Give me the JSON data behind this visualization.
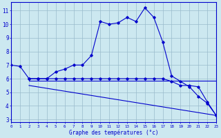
{
  "line1_x": [
    0,
    1,
    2,
    3,
    4,
    5,
    6,
    7,
    8,
    9,
    10,
    11,
    12,
    13,
    14,
    15,
    16,
    17,
    18,
    19,
    20,
    21,
    22,
    23
  ],
  "line1_y": [
    7.0,
    6.9,
    6.0,
    6.0,
    6.0,
    6.5,
    6.7,
    7.0,
    7.0,
    7.7,
    10.2,
    10.0,
    10.1,
    10.5,
    10.2,
    11.2,
    10.5,
    8.7,
    6.2,
    5.8,
    5.4,
    4.7,
    4.2,
    3.3
  ],
  "line2_x": [
    2,
    3,
    4,
    5,
    6,
    7,
    8,
    9,
    10,
    11,
    12,
    13,
    14,
    15,
    16,
    17,
    18,
    19,
    20,
    21,
    22,
    23
  ],
  "line2_y": [
    6.0,
    6.0,
    6.0,
    6.0,
    6.0,
    6.0,
    6.0,
    6.0,
    6.0,
    6.0,
    6.0,
    6.0,
    6.0,
    6.0,
    6.0,
    6.0,
    5.8,
    5.5,
    5.5,
    5.4,
    4.3,
    3.3
  ],
  "line3_x": [
    2,
    23
  ],
  "line3_y": [
    5.85,
    5.85
  ],
  "line4_x": [
    2,
    23
  ],
  "line4_y": [
    5.5,
    3.3
  ],
  "line_color": "#0000cc",
  "bg_color": "#cce8f0",
  "grid_color": "#99bbcc",
  "xlabel": "Graphe des températures (°c)",
  "ylabel_ticks": [
    3,
    4,
    5,
    6,
    7,
    8,
    9,
    10,
    11
  ],
  "xlim": [
    0,
    23
  ],
  "ylim": [
    2.8,
    11.6
  ],
  "xticks": [
    0,
    1,
    2,
    3,
    4,
    5,
    6,
    7,
    8,
    9,
    10,
    11,
    12,
    13,
    14,
    15,
    16,
    17,
    18,
    19,
    20,
    21,
    22,
    23
  ]
}
